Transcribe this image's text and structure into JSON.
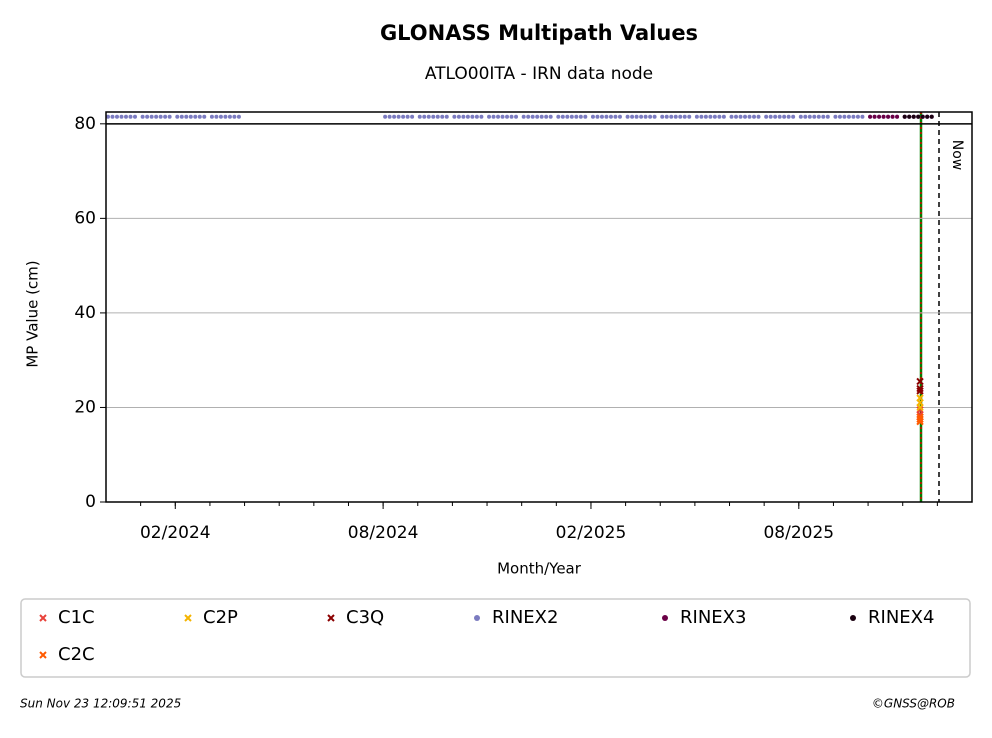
{
  "chart_data": {
    "type": "scatter",
    "title": "GLONASS Multipath Values",
    "subtitle": "ATLO00ITA - IRN data node",
    "x_label": "Month/Year",
    "y_label": "MP Value (cm)",
    "xlim": [
      "2023-12",
      "2026-01"
    ],
    "xticks": [
      {
        "value": "2024-02",
        "label": "02/2024"
      },
      {
        "value": "2024-08",
        "label": "08/2024"
      },
      {
        "value": "2025-02",
        "label": "02/2025"
      },
      {
        "value": "2025-08",
        "label": "08/2025"
      }
    ],
    "ylim": [
      0,
      82.5
    ],
    "yticks": [
      0,
      20,
      40,
      60,
      80
    ],
    "grid": true,
    "now_label": "Now",
    "series": [
      {
        "name": "C1C",
        "color": "#e8423a",
        "marker": "x",
        "x": [
          "2025-11",
          "2025-11",
          "2025-11"
        ],
        "values": [
          18.5,
          19.5,
          18
        ]
      },
      {
        "name": "C2P",
        "color": "#f5b400",
        "marker": "x",
        "x": [
          "2025-11",
          "2025-11",
          "2025-11"
        ],
        "values": [
          21,
          20,
          22
        ]
      },
      {
        "name": "C3Q",
        "color": "#8b0000",
        "marker": "x",
        "x": [
          "2025-11",
          "2025-11",
          "2025-11"
        ],
        "values": [
          25.5,
          24,
          23.5
        ]
      },
      {
        "name": "RINEX2",
        "color": "#7b7bc0",
        "marker": "o",
        "x": [
          "2023-12",
          "2024-01",
          "2024-02",
          "2024-03",
          "2024-08",
          "2024-09",
          "2024-10",
          "2024-11",
          "2024-12",
          "2025-01",
          "2025-02",
          "2025-03",
          "2025-04",
          "2025-05",
          "2025-06",
          "2025-07",
          "2025-08",
          "2025-09",
          "2025-10",
          "2025-11"
        ],
        "values": [
          81.5,
          81.5,
          81.5,
          81.5,
          81.5,
          81.5,
          81.5,
          81.5,
          81.5,
          81.5,
          81.5,
          81.5,
          81.5,
          81.5,
          81.5,
          81.5,
          81.5,
          81.5,
          81.5,
          81.5
        ]
      },
      {
        "name": "RINEX3",
        "color": "#6b0046",
        "marker": "o",
        "x": [
          "2025-10",
          "2025-11"
        ],
        "values": [
          81.5,
          81.5
        ]
      },
      {
        "name": "RINEX4",
        "color": "#1a0010",
        "marker": "o",
        "x": [
          "2025-11"
        ],
        "values": [
          81.5
        ]
      },
      {
        "name": "C2C",
        "color": "#ff5a00",
        "marker": "x",
        "x": [
          "2025-11",
          "2025-11",
          "2025-11"
        ],
        "values": [
          17,
          18,
          17.5
        ]
      }
    ],
    "timestamp": "Sun Nov 23 12:09:51 2025",
    "credit": "©GNSS@ROB"
  }
}
